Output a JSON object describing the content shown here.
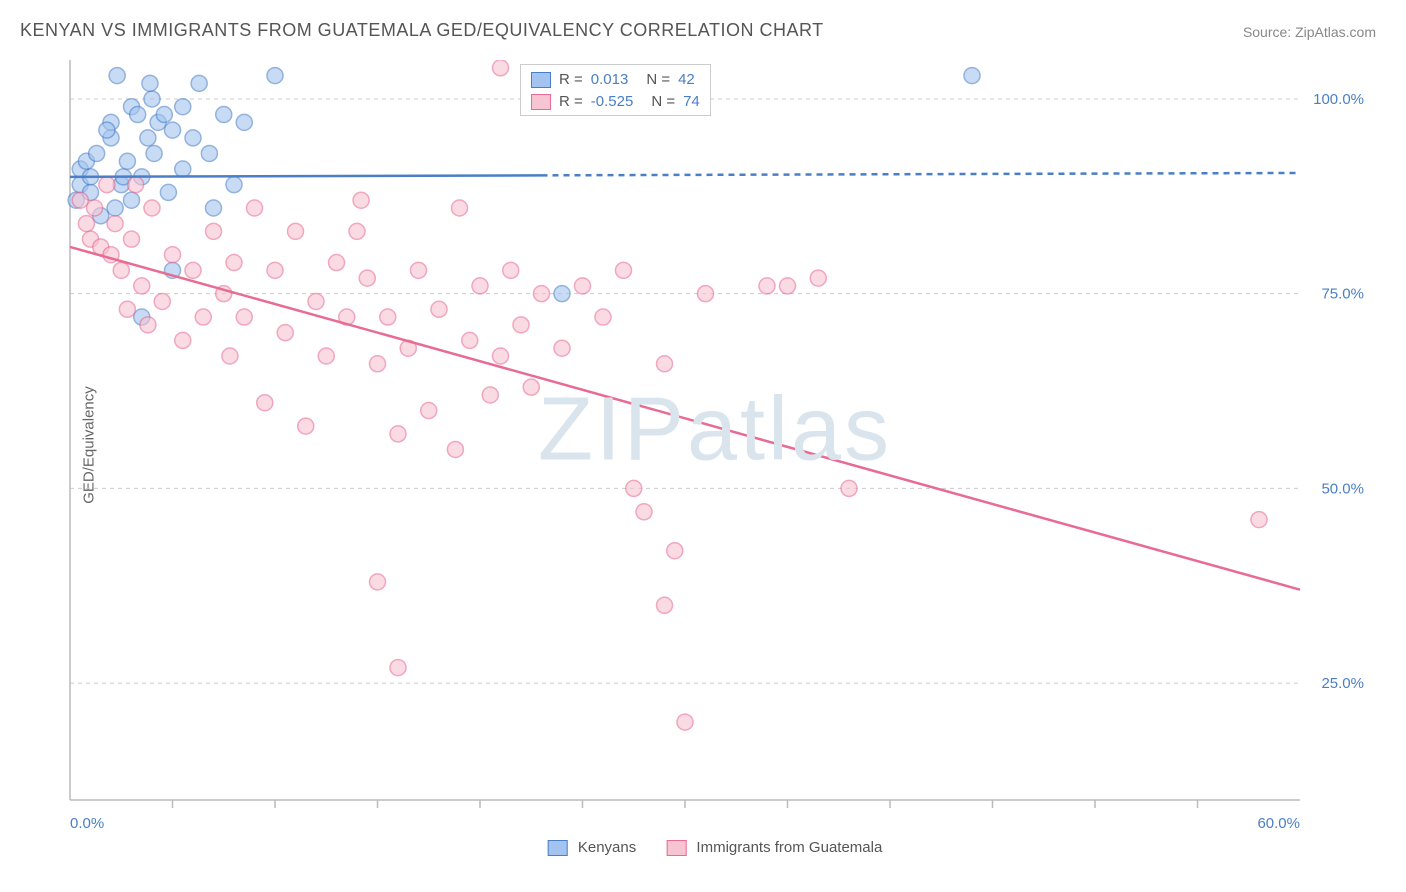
{
  "title": "KENYAN VS IMMIGRANTS FROM GUATEMALA GED/EQUIVALENCY CORRELATION CHART",
  "source": "Source: ZipAtlas.com",
  "watermark_a": "ZIP",
  "watermark_b": "atlas",
  "ylabel": "GED/Equivalency",
  "chart": {
    "type": "scatter",
    "background_color": "#ffffff",
    "grid_color": "#cccccc",
    "xlim": [
      0,
      60
    ],
    "ylim": [
      10,
      105
    ],
    "xtick_labels": [
      "0.0%",
      "60.0%"
    ],
    "xtick_positions": [
      0,
      60
    ],
    "xtick_minor": [
      5,
      10,
      15,
      20,
      25,
      30,
      35,
      40,
      45,
      50,
      55
    ],
    "ytick_labels": [
      "25.0%",
      "50.0%",
      "75.0%",
      "100.0%"
    ],
    "ytick_positions": [
      25,
      50,
      75,
      100
    ],
    "series": [
      {
        "name": "Kenyans",
        "color_fill": "#a3c4f0",
        "color_stroke": "#4a7fc7",
        "r_label": "R =",
        "r_value": "0.013",
        "n_label": "N =",
        "n_value": "42",
        "regression": {
          "x1": 0,
          "y1": 90,
          "x2": 60,
          "y2": 90.5,
          "solid_until_x": 23
        },
        "points": [
          [
            0.5,
            89
          ],
          [
            0.5,
            91
          ],
          [
            0.8,
            92
          ],
          [
            1,
            88
          ],
          [
            1,
            90
          ],
          [
            1.3,
            93
          ],
          [
            2,
            95
          ],
          [
            2,
            97
          ],
          [
            2.3,
            103
          ],
          [
            2.5,
            89
          ],
          [
            2.8,
            92
          ],
          [
            3,
            99
          ],
          [
            3.3,
            98
          ],
          [
            3.5,
            90
          ],
          [
            3.8,
            95
          ],
          [
            4,
            100
          ],
          [
            4.3,
            97
          ],
          [
            4.6,
            98
          ],
          [
            3,
            87
          ],
          [
            3.5,
            72
          ],
          [
            5,
            96
          ],
          [
            5.5,
            91
          ],
          [
            5.5,
            99
          ],
          [
            6,
            95
          ],
          [
            6.3,
            102
          ],
          [
            6.8,
            93
          ],
          [
            7,
            86
          ],
          [
            5,
            78
          ],
          [
            8,
            89
          ],
          [
            10,
            103
          ],
          [
            24,
            75
          ],
          [
            7.5,
            98
          ],
          [
            8.5,
            97
          ],
          [
            1.5,
            85
          ],
          [
            2.2,
            86
          ],
          [
            4.1,
            93
          ],
          [
            4.8,
            88
          ],
          [
            1.8,
            96
          ],
          [
            2.6,
            90
          ],
          [
            3.9,
            102
          ],
          [
            0.3,
            87
          ],
          [
            44,
            103
          ]
        ]
      },
      {
        "name": "Immigrants from Guatemala",
        "color_fill": "#f7c4d2",
        "color_stroke": "#e86b94",
        "r_label": "R =",
        "r_value": "-0.525",
        "n_label": "N =",
        "n_value": "74",
        "regression": {
          "x1": 0,
          "y1": 81,
          "x2": 60,
          "y2": 37,
          "solid_until_x": 60
        },
        "points": [
          [
            0.5,
            87
          ],
          [
            0.8,
            84
          ],
          [
            1,
            82
          ],
          [
            1.2,
            86
          ],
          [
            1.5,
            81
          ],
          [
            1.8,
            89
          ],
          [
            2,
            80
          ],
          [
            2.2,
            84
          ],
          [
            2.5,
            78
          ],
          [
            2.8,
            73
          ],
          [
            3,
            82
          ],
          [
            3.2,
            89
          ],
          [
            3.5,
            76
          ],
          [
            3.8,
            71
          ],
          [
            4,
            86
          ],
          [
            4.5,
            74
          ],
          [
            5,
            80
          ],
          [
            5.5,
            69
          ],
          [
            6,
            78
          ],
          [
            6.5,
            72
          ],
          [
            7,
            83
          ],
          [
            7.5,
            75
          ],
          [
            7.8,
            67
          ],
          [
            8,
            79
          ],
          [
            8.5,
            72
          ],
          [
            9,
            86
          ],
          [
            9.5,
            61
          ],
          [
            10,
            78
          ],
          [
            10.5,
            70
          ],
          [
            11,
            83
          ],
          [
            11.5,
            58
          ],
          [
            12,
            74
          ],
          [
            12.5,
            67
          ],
          [
            13,
            79
          ],
          [
            13.5,
            72
          ],
          [
            14,
            83
          ],
          [
            14.5,
            77
          ],
          [
            15,
            66
          ],
          [
            15.5,
            72
          ],
          [
            16,
            57
          ],
          [
            16.5,
            68
          ],
          [
            17,
            78
          ],
          [
            17.5,
            60
          ],
          [
            18,
            73
          ],
          [
            18.8,
            55
          ],
          [
            19,
            86
          ],
          [
            19.5,
            69
          ],
          [
            20,
            76
          ],
          [
            20.5,
            62
          ],
          [
            21,
            67
          ],
          [
            21.5,
            78
          ],
          [
            22,
            71
          ],
          [
            22.5,
            63
          ],
          [
            23,
            75
          ],
          [
            24,
            68
          ],
          [
            25,
            76
          ],
          [
            26,
            72
          ],
          [
            27,
            78
          ],
          [
            28,
            47
          ],
          [
            29,
            66
          ],
          [
            27.5,
            50
          ],
          [
            29.5,
            42
          ],
          [
            29,
            35
          ],
          [
            30,
            20
          ],
          [
            31,
            75
          ],
          [
            35,
            76
          ],
          [
            38,
            50
          ],
          [
            34,
            76
          ],
          [
            36.5,
            77
          ],
          [
            16,
            27
          ],
          [
            15,
            38
          ],
          [
            14.2,
            87
          ],
          [
            21,
            104
          ],
          [
            58,
            46
          ]
        ]
      }
    ],
    "legend_bottom": [
      {
        "swatch_fill": "#a3c4f0",
        "swatch_stroke": "#4a7fc7",
        "label": "Kenyans"
      },
      {
        "swatch_fill": "#f7c4d2",
        "swatch_stroke": "#e86b94",
        "label": "Immigrants from Guatemala"
      }
    ]
  }
}
